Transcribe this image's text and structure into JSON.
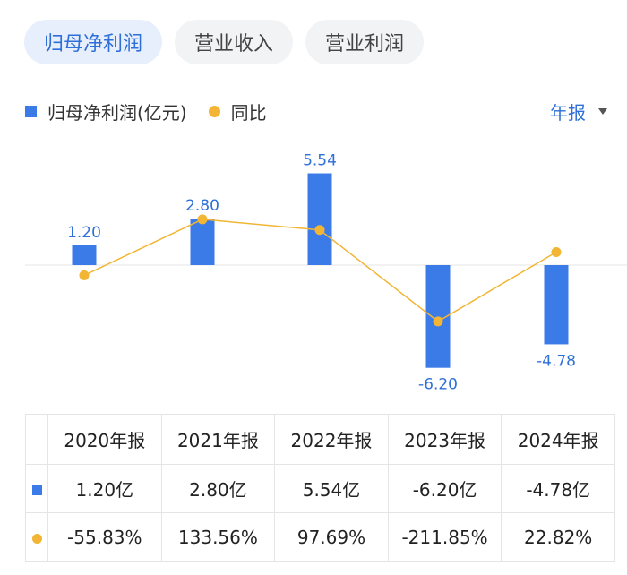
{
  "tabs": [
    {
      "label": "归母净利润",
      "active": true
    },
    {
      "label": "营业收入",
      "active": false
    },
    {
      "label": "营业利润",
      "active": false
    }
  ],
  "legend": {
    "bar_label": "归母净利润(亿元)",
    "line_label": "同比"
  },
  "period_selector": "年报",
  "colors": {
    "bar": "#3b7be8",
    "line": "#f2b534",
    "positive": "#e0464a",
    "negative": "#1a9b62",
    "accent": "#2e6fd8"
  },
  "chart_data": {
    "type": "bar",
    "categories": [
      "2020年报",
      "2021年报",
      "2022年报",
      "2023年报",
      "2024年报"
    ],
    "series": [
      {
        "name": "归母净利润(亿元)",
        "type": "bar",
        "values": [
          1.2,
          2.8,
          5.54,
          -6.2,
          -4.78
        ],
        "labels": [
          "1.20",
          "2.80",
          "5.54",
          "-6.20",
          "-4.78"
        ]
      },
      {
        "name": "同比",
        "type": "line",
        "values": [
          -55.83,
          133.56,
          97.69,
          -211.85,
          22.82
        ]
      }
    ]
  },
  "table": {
    "headers": [
      "2020年报",
      "2021年报",
      "2022年报",
      "2023年报",
      "2024年报"
    ],
    "profit_row": [
      "1.20亿",
      "2.80亿",
      "5.54亿",
      "-6.20亿",
      "-4.78亿"
    ],
    "yoy_row": [
      "-55.83%",
      "133.56%",
      "97.69%",
      "-211.85%",
      "22.82%"
    ]
  }
}
